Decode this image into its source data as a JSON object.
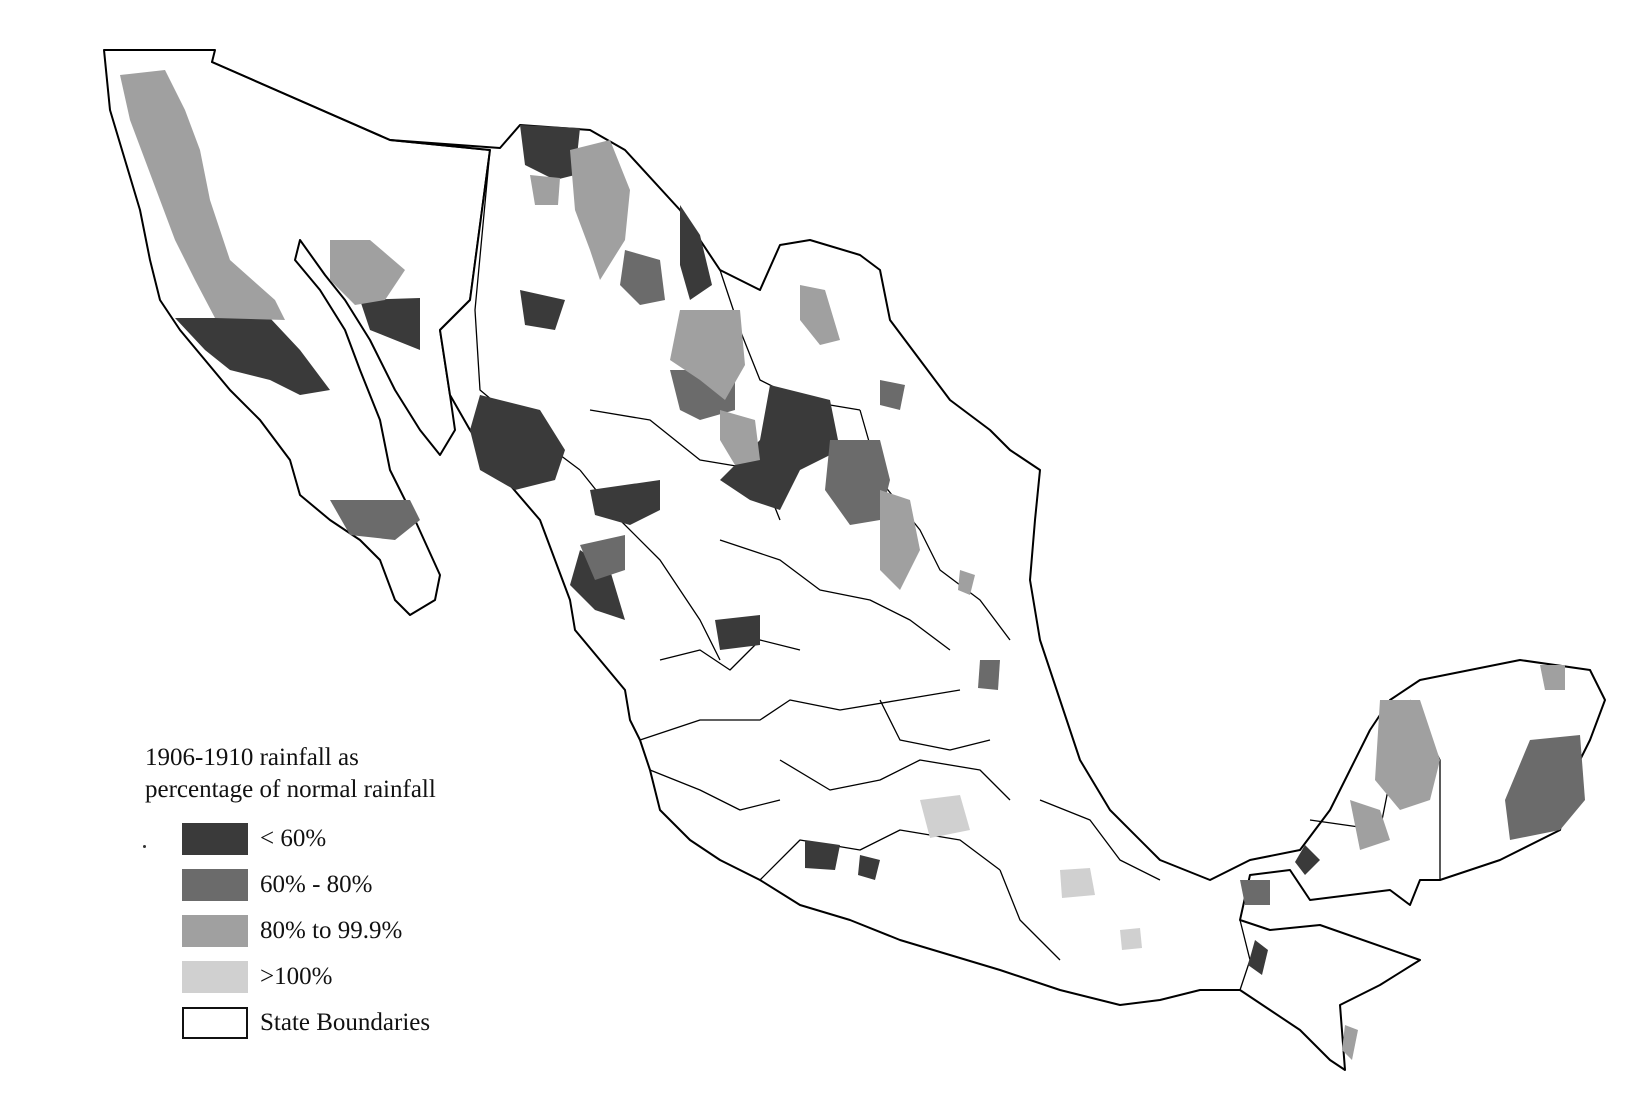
{
  "legend": {
    "title_line1": "1906-1910 rainfall as",
    "title_line2": "percentage of normal rainfall",
    "items": [
      {
        "label": "< 60%",
        "color": "#3a3a3a"
      },
      {
        "label": "60% - 80%",
        "color": "#6b6b6b"
      },
      {
        "label": "80% to 99.9%",
        "color": "#a0a0a0"
      },
      {
        "label": ">100%",
        "color": "#d0d0d0"
      },
      {
        "label": "State Boundaries",
        "color": "#ffffff"
      }
    ]
  }
}
